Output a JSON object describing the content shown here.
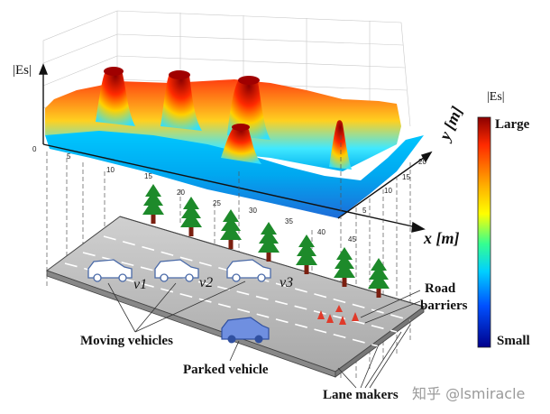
{
  "surface_plot": {
    "z_axis_label": "|Es|",
    "x_axis_label": "x [m]",
    "y_axis_label": "y [m]",
    "x_ticks": [
      "0",
      "5",
      "10",
      "15",
      "20",
      "25",
      "30",
      "35",
      "40",
      "45"
    ],
    "y_ticks": [
      "5",
      "10",
      "15",
      "20"
    ]
  },
  "colorbar": {
    "title": "|Es|",
    "high_label": "Large",
    "low_label": "Small",
    "colors": [
      "#8b0000",
      "#ff2a00",
      "#ffb000",
      "#ffff00",
      "#35ff90",
      "#00d0ff",
      "#0050ff",
      "#00008b"
    ]
  },
  "scene": {
    "vehicle_labels": [
      "v1",
      "v2",
      "v3"
    ],
    "moving_label": "Moving vehicles",
    "parked_label": "Parked vehicle",
    "barriers_line1": "Road",
    "barriers_line2": "barriers",
    "lane_label": "Lane makers"
  },
  "watermark": "知乎 @lsmiracle"
}
